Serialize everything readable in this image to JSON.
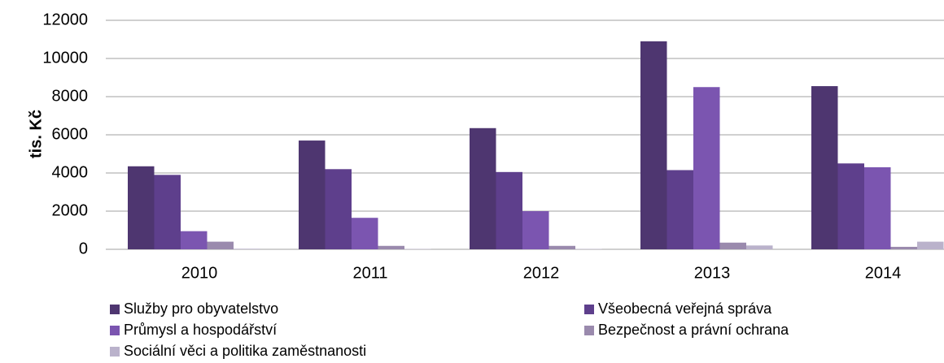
{
  "chart_data": {
    "type": "bar",
    "y_label": "tis. Kč",
    "categories": [
      "2010",
      "2011",
      "2012",
      "2013",
      "2014"
    ],
    "series": [
      {
        "name": "Služby pro obyvatelstvo",
        "color": "#4e3670",
        "values": [
          4350,
          5700,
          6350,
          10900,
          8550
        ]
      },
      {
        "name": "Všeobecná veřejná správa",
        "color": "#5e3f8c",
        "values": [
          3900,
          4200,
          4050,
          4150,
          4500
        ]
      },
      {
        "name": "Průmysl a hospodářství",
        "color": "#7b55b0",
        "values": [
          950,
          1650,
          2000,
          8500,
          4300
        ]
      },
      {
        "name": "Bezpečnost a právní ochrana",
        "color": "#9a8aad",
        "values": [
          400,
          180,
          180,
          350,
          130
        ]
      },
      {
        "name": "Sociální věci a politika zaměstnanosti",
        "color": "#bab2cb",
        "values": [
          30,
          20,
          20,
          200,
          400
        ]
      }
    ],
    "ylim": [
      0,
      12000
    ],
    "yticks": [
      0,
      2000,
      4000,
      6000,
      8000,
      10000,
      12000
    ],
    "grid": true
  }
}
